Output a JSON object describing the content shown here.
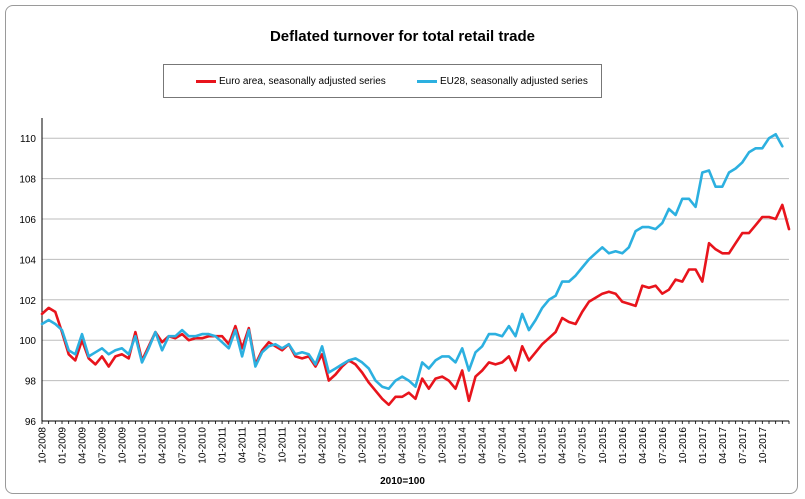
{
  "chart_data": {
    "type": "line",
    "title": "Deflated turnover for total retail trade",
    "xlabel": "2010=100",
    "ylabel": "",
    "ylim": [
      96,
      111
    ],
    "yticks": [
      96,
      98,
      100,
      102,
      104,
      106,
      108,
      110
    ],
    "xtick_labels": [
      "10-2008",
      "01-2009",
      "04-2009",
      "07-2009",
      "10-2009",
      "01-2010",
      "04-2010",
      "07-2010",
      "10-2010",
      "01-2011",
      "04-2011",
      "07-2011",
      "10-2011",
      "01-2012",
      "04-2012",
      "07-2012",
      "10-2012",
      "01-2013",
      "04-2013",
      "07-2013",
      "10-2013",
      "01-2014",
      "04-2014",
      "07-2014",
      "10-2014",
      "01-2015",
      "04-2015",
      "07-2015",
      "10-2015",
      "01-2016",
      "04-2016",
      "07-2016",
      "10-2016",
      "01-2017",
      "04-2017",
      "07-2017",
      "10-2017"
    ],
    "grid": "horizontal",
    "legend_position": "top",
    "x_start": "10-2008",
    "series": [
      {
        "name": "Euro area, seasonally adjusted series",
        "color": "#e8141c",
        "values": [
          101.3,
          101.6,
          101.4,
          100.4,
          99.3,
          99.0,
          100.0,
          99.1,
          98.8,
          99.2,
          98.7,
          99.2,
          99.3,
          99.1,
          100.4,
          99.0,
          99.7,
          100.4,
          99.9,
          100.2,
          100.1,
          100.3,
          100.0,
          100.1,
          100.1,
          100.2,
          100.2,
          100.2,
          99.8,
          100.7,
          99.6,
          100.6,
          98.8,
          99.5,
          99.9,
          99.7,
          99.5,
          99.8,
          99.2,
          99.1,
          99.2,
          98.7,
          99.3,
          98.0,
          98.3,
          98.7,
          99.0,
          98.8,
          98.4,
          97.9,
          97.5,
          97.1,
          96.8,
          97.2,
          97.2,
          97.4,
          97.1,
          98.1,
          97.6,
          98.1,
          98.2,
          98.0,
          97.6,
          98.5,
          97.0,
          98.2,
          98.5,
          98.9,
          98.8,
          98.9,
          99.2,
          98.5,
          99.7,
          99.0,
          99.4,
          99.8,
          100.1,
          100.4,
          101.1,
          100.9,
          100.8,
          101.4,
          101.9,
          102.1,
          102.3,
          102.4,
          102.3,
          101.9,
          101.8,
          101.7,
          102.7,
          102.6,
          102.7,
          102.3,
          102.5,
          103.0,
          102.9,
          103.5,
          103.5,
          102.9,
          104.8,
          104.5,
          104.3,
          104.3,
          104.8,
          105.3,
          105.3,
          105.7,
          106.1,
          106.1,
          106.0,
          106.7,
          105.5
        ]
      },
      {
        "name": "EU28, seasonally adjusted series",
        "color": "#2cb0e0",
        "values": [
          100.8,
          101.0,
          100.8,
          100.5,
          99.5,
          99.3,
          100.3,
          99.2,
          99.4,
          99.6,
          99.3,
          99.5,
          99.6,
          99.3,
          100.2,
          98.9,
          99.6,
          100.4,
          99.5,
          100.2,
          100.2,
          100.5,
          100.2,
          100.2,
          100.3,
          100.3,
          100.2,
          99.9,
          99.6,
          100.5,
          99.2,
          100.5,
          98.7,
          99.4,
          99.7,
          99.8,
          99.6,
          99.8,
          99.3,
          99.4,
          99.3,
          98.8,
          99.7,
          98.4,
          98.6,
          98.8,
          99.0,
          99.1,
          98.9,
          98.6,
          98.0,
          97.7,
          97.6,
          98.0,
          98.2,
          98.0,
          97.7,
          98.9,
          98.6,
          99.0,
          99.2,
          99.2,
          98.9,
          99.6,
          98.5,
          99.4,
          99.7,
          100.3,
          100.3,
          100.2,
          100.7,
          100.2,
          101.3,
          100.5,
          101.0,
          101.6,
          102.0,
          102.2,
          102.9,
          102.9,
          103.2,
          103.6,
          104.0,
          104.3,
          104.6,
          104.3,
          104.4,
          104.3,
          104.6,
          105.4,
          105.6,
          105.6,
          105.5,
          105.8,
          106.5,
          106.2,
          107.0,
          107.0,
          106.6,
          108.3,
          108.4,
          107.6,
          107.6,
          108.3,
          108.5,
          108.8,
          109.3,
          109.5,
          109.5,
          110.0,
          110.2,
          109.6
        ]
      }
    ]
  }
}
